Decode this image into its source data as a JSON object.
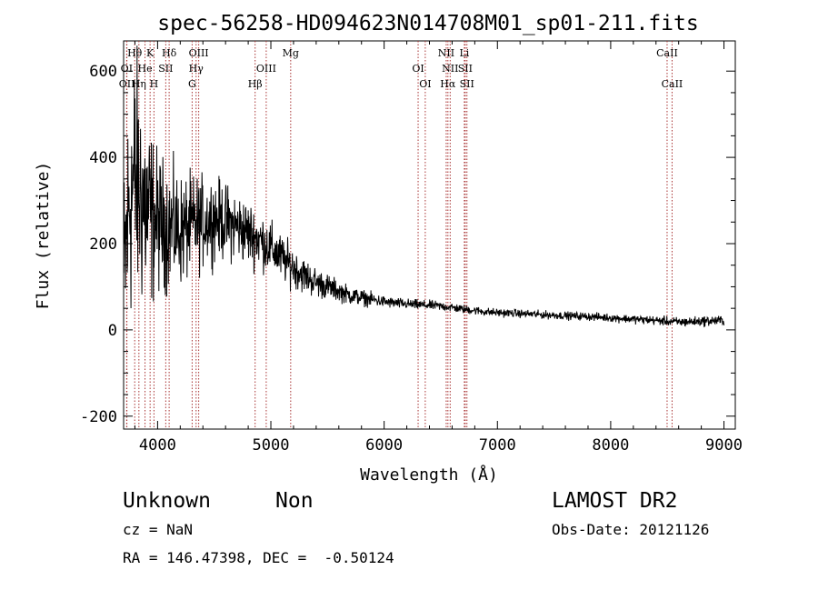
{
  "chart_data": {
    "type": "line",
    "title": "spec-56258-HD094623N014708M01_sp01-211.fits",
    "xlabel": "Wavelength (Å)",
    "ylabel": "Flux (relative)",
    "xlim": [
      3700,
      9100
    ],
    "ylim": [
      -230,
      670
    ],
    "xticks": [
      4000,
      5000,
      6000,
      7000,
      8000,
      9000
    ],
    "yticks": [
      -200,
      0,
      200,
      400,
      600
    ],
    "grid": false,
    "line_color": "#000000",
    "marker_color": "#a83232",
    "continuum": {
      "x": [
        3700,
        3750,
        3800,
        3850,
        3900,
        3950,
        4000,
        4100,
        4200,
        4300,
        4400,
        4500,
        4600,
        4700,
        4800,
        4900,
        5000,
        5100,
        5200,
        5300,
        5400,
        5500,
        5600,
        5700,
        5800,
        5900,
        6000,
        6100,
        6200,
        6300,
        6400,
        6500,
        6600,
        6700,
        6800,
        6900,
        7000,
        7200,
        7400,
        7600,
        7800,
        8000,
        8200,
        8400,
        8500,
        8600,
        8800,
        9000
      ],
      "y": [
        100,
        300,
        350,
        320,
        280,
        260,
        250,
        240,
        230,
        240,
        250,
        260,
        250,
        240,
        225,
        210,
        190,
        165,
        145,
        125,
        110,
        100,
        90,
        80,
        75,
        70,
        65,
        62,
        60,
        58,
        57,
        55,
        52,
        48,
        45,
        42,
        40,
        38,
        35,
        33,
        31,
        28,
        25,
        22,
        20,
        18,
        20,
        22
      ]
    },
    "noise": {
      "x": [
        3700,
        3800,
        3900,
        4000,
        4200,
        4500,
        4800,
        5000,
        5300,
        5600,
        6000,
        6500,
        7000,
        8000,
        9000
      ],
      "y": [
        200,
        230,
        180,
        120,
        95,
        70,
        55,
        45,
        30,
        18,
        10,
        8,
        7,
        7,
        9
      ]
    },
    "line_markers": [
      {
        "name": "Hθ",
        "wavelength": 3798,
        "row": 0
      },
      {
        "name": "K",
        "wavelength": 3934,
        "row": 0
      },
      {
        "name": "Hδ",
        "wavelength": 4102,
        "row": 0
      },
      {
        "name": "OIII",
        "wavelength": 4363,
        "row": 0
      },
      {
        "name": "Mg",
        "wavelength": 5175,
        "row": 0
      },
      {
        "name": "NII",
        "wavelength": 6548,
        "row": 0
      },
      {
        "name": "Li",
        "wavelength": 6708,
        "row": 0
      },
      {
        "name": "CaII",
        "wavelength": 8498,
        "row": 0
      },
      {
        "name": "OI",
        "wavelength": 3727,
        "row": 1
      },
      {
        "name": "He",
        "wavelength": 3889,
        "row": 1
      },
      {
        "name": "SII",
        "wavelength": 4072,
        "row": 1
      },
      {
        "name": "Hγ",
        "wavelength": 4340,
        "row": 1
      },
      {
        "name": "OIII",
        "wavelength": 4959,
        "row": 1
      },
      {
        "name": "OI",
        "wavelength": 6300,
        "row": 1
      },
      {
        "name": "NII",
        "wavelength": 6583,
        "row": 1
      },
      {
        "name": "SII",
        "wavelength": 6716,
        "row": 1
      },
      {
        "name": "OII",
        "wavelength": 3729,
        "row": 2
      },
      {
        "name": "Hη",
        "wavelength": 3835,
        "row": 2
      },
      {
        "name": "H",
        "wavelength": 3968,
        "row": 2
      },
      {
        "name": "G",
        "wavelength": 4305,
        "row": 2
      },
      {
        "name": "Hβ",
        "wavelength": 4861,
        "row": 2
      },
      {
        "name": "OI",
        "wavelength": 6363,
        "row": 2
      },
      {
        "name": "Hα",
        "wavelength": 6563,
        "row": 2
      },
      {
        "name": "SII",
        "wavelength": 6731,
        "row": 2
      },
      {
        "name": "CaII",
        "wavelength": 8542,
        "row": 2
      }
    ]
  },
  "info": {
    "object_class": "Unknown",
    "subclass": "Non",
    "survey": "LAMOST DR2",
    "redshift": "cz = NaN",
    "obs_date": "Obs-Date: 20121126",
    "coords": "RA = 146.47398, DEC =  -0.50124"
  }
}
